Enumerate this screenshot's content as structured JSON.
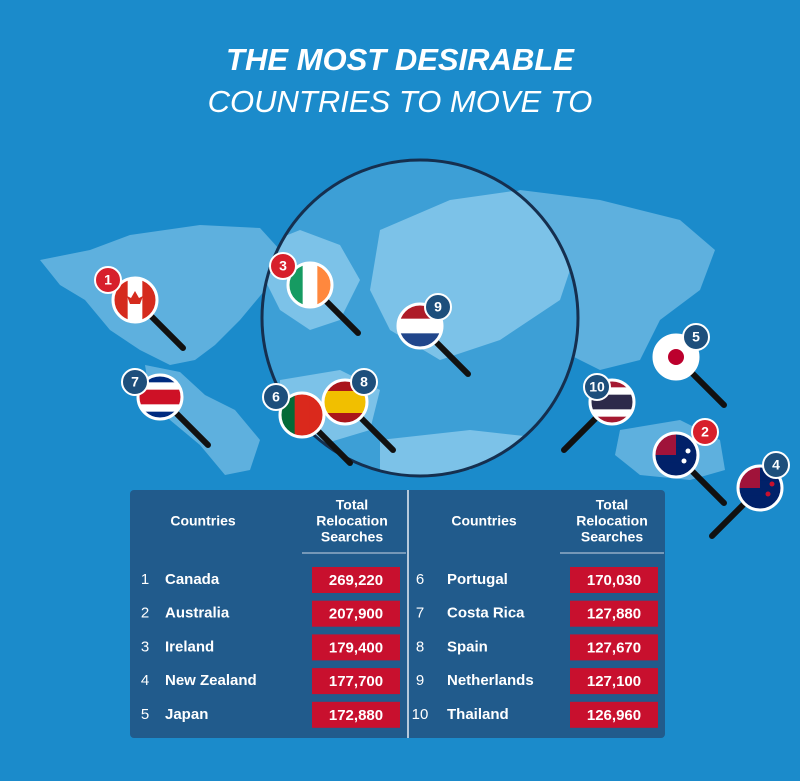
{
  "title": [
    "THE MOST DESIRABLE",
    "COUNTRIES TO MOVE TO"
  ],
  "markers": [
    "1",
    "2",
    "3",
    "4",
    "5",
    "6",
    "7",
    "8",
    "9",
    "10"
  ],
  "table": [
    {
      "countries_header": "Countries",
      "searches_header": [
        "Total",
        "Relocation",
        "Searches"
      ],
      "rows": [
        [
          "1",
          "Canada",
          "269,220"
        ],
        [
          "2",
          "Australia",
          "207,900"
        ],
        [
          "3",
          "Ireland",
          "179,400"
        ],
        [
          "4",
          "New Zealand",
          "177,700"
        ],
        [
          "5",
          "Japan",
          "172,880"
        ]
      ]
    },
    {
      "countries_header": "Countries",
      "searches_header": [
        "Total",
        "Relocation",
        "Searches"
      ],
      "rows": [
        [
          "6",
          "Portugal",
          "170,030"
        ],
        [
          "7",
          "Costa Rica",
          "127,880"
        ],
        [
          "8",
          "Spain",
          "127,670"
        ],
        [
          "9",
          "Netherlands",
          "127,100"
        ],
        [
          "10",
          "Thailand",
          "126,960"
        ]
      ]
    }
  ]
}
